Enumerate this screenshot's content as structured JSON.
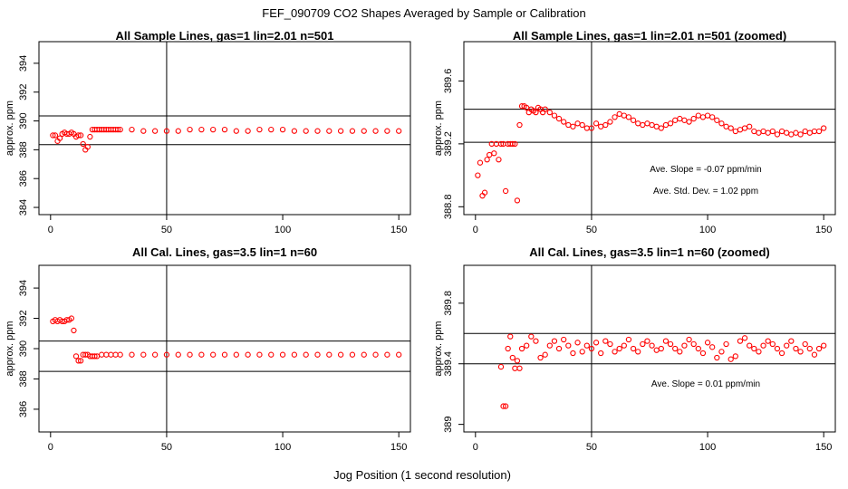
{
  "figure": {
    "title": "FEF_090709  CO2 Shapes Averaged by Sample or Calibration",
    "xlabel": "Jog Position (1 second resolution)",
    "marker_color": "#ff0000",
    "axis_color": "#000000"
  },
  "chart_data": [
    {
      "type": "scatter",
      "title": "All Sample Lines, gas=1 lin=2.01 n=501",
      "xlabel": "",
      "ylabel": "approx. ppm",
      "xlim": [
        -5,
        155
      ],
      "ylim": [
        383.5,
        395.5
      ],
      "xticks": [
        0,
        50,
        100,
        150
      ],
      "yticks": [
        384,
        386,
        388,
        390,
        392,
        394
      ],
      "hlines": [
        388.35,
        390.35
      ],
      "vlines": [
        50
      ],
      "annotations": [],
      "series": [
        {
          "name": "sample",
          "x": [
            1,
            2,
            3,
            4,
            5,
            6,
            7,
            8,
            9,
            10,
            11,
            12,
            13,
            14,
            15,
            16,
            17,
            18,
            19,
            20,
            21,
            22,
            23,
            24,
            25,
            26,
            27,
            28,
            29,
            30,
            35,
            40,
            45,
            50,
            55,
            60,
            65,
            70,
            75,
            80,
            85,
            90,
            95,
            100,
            105,
            110,
            115,
            120,
            125,
            130,
            135,
            140,
            145,
            150
          ],
          "y": [
            389.0,
            389.0,
            388.6,
            388.8,
            389.1,
            389.2,
            389.1,
            389.1,
            389.2,
            389.1,
            388.9,
            389.0,
            389.0,
            388.4,
            388.0,
            388.2,
            388.9,
            389.4,
            389.4,
            389.4,
            389.4,
            389.4,
            389.4,
            389.4,
            389.4,
            389.4,
            389.4,
            389.4,
            389.4,
            389.4,
            389.4,
            389.3,
            389.3,
            389.3,
            389.3,
            389.4,
            389.4,
            389.4,
            389.4,
            389.3,
            389.3,
            389.4,
            389.4,
            389.4,
            389.3,
            389.3,
            389.3,
            389.3,
            389.3,
            389.3,
            389.3,
            389.3,
            389.3,
            389.3
          ]
        }
      ]
    },
    {
      "type": "scatter",
      "title": "All Sample Lines, gas=1 lin=2.01 n=501 (zoomed)",
      "xlabel": "",
      "ylabel": "approx. ppm",
      "xlim": [
        -5,
        155
      ],
      "ylim": [
        388.75,
        389.85
      ],
      "xticks": [
        0,
        50,
        100,
        150
      ],
      "yticks": [
        388.8,
        389.2,
        389.6
      ],
      "hlines": [
        389.42,
        389.21
      ],
      "vlines": [
        50
      ],
      "annotations": [
        "Ave. Slope =  -0.07  ppm/min",
        "Ave. Std. Dev. =  1.02  ppm"
      ],
      "series": [
        {
          "name": "sample-zoomed",
          "x": [
            1,
            2,
            3,
            4,
            5,
            6,
            7,
            8,
            9,
            10,
            11,
            12,
            13,
            14,
            15,
            16,
            17,
            18,
            19,
            20,
            21,
            22,
            23,
            24,
            25,
            26,
            27,
            28,
            29,
            30,
            32,
            34,
            36,
            38,
            40,
            42,
            44,
            46,
            48,
            50,
            52,
            54,
            56,
            58,
            60,
            62,
            64,
            66,
            68,
            70,
            72,
            74,
            76,
            78,
            80,
            82,
            84,
            86,
            88,
            90,
            92,
            94,
            96,
            98,
            100,
            102,
            104,
            106,
            108,
            110,
            112,
            114,
            116,
            118,
            120,
            122,
            124,
            126,
            128,
            130,
            132,
            134,
            136,
            138,
            140,
            142,
            144,
            146,
            148,
            150
          ],
          "y": [
            389.0,
            389.08,
            388.87,
            388.89,
            389.1,
            389.13,
            389.2,
            389.14,
            389.2,
            389.1,
            389.2,
            389.2,
            388.9,
            389.2,
            389.2,
            389.2,
            389.2,
            388.84,
            389.32,
            389.44,
            389.44,
            389.43,
            389.4,
            389.42,
            389.41,
            389.4,
            389.43,
            389.42,
            389.4,
            389.42,
            389.4,
            389.38,
            389.36,
            389.34,
            389.32,
            389.31,
            389.33,
            389.32,
            389.3,
            389.3,
            389.33,
            389.31,
            389.32,
            389.34,
            389.37,
            389.39,
            389.38,
            389.37,
            389.35,
            389.33,
            389.32,
            389.33,
            389.32,
            389.31,
            389.3,
            389.32,
            389.33,
            389.35,
            389.36,
            389.35,
            389.34,
            389.36,
            389.38,
            389.37,
            389.38,
            389.37,
            389.35,
            389.33,
            389.31,
            389.3,
            389.28,
            389.29,
            389.3,
            389.31,
            389.28,
            389.27,
            389.28,
            389.27,
            389.28,
            389.26,
            389.28,
            389.27,
            389.26,
            389.27,
            389.26,
            389.28,
            389.27,
            389.28,
            389.28,
            389.3
          ]
        }
      ]
    },
    {
      "type": "scatter",
      "title": "All Cal. Lines, gas=3.5 lin=1 n=60",
      "xlabel": "",
      "ylabel": "approx. ppm",
      "xlim": [
        -5,
        155
      ],
      "ylim": [
        384.5,
        395.5
      ],
      "xticks": [
        0,
        50,
        100,
        150
      ],
      "yticks": [
        386,
        388,
        390,
        392,
        394
      ],
      "hlines": [
        388.5,
        390.5
      ],
      "vlines": [
        50
      ],
      "annotations": [],
      "series": [
        {
          "name": "calibration",
          "x": [
            1,
            2,
            3,
            4,
            5,
            6,
            7,
            8,
            9,
            10,
            11,
            12,
            13,
            14,
            15,
            16,
            17,
            18,
            19,
            20,
            22,
            24,
            26,
            28,
            30,
            35,
            40,
            45,
            50,
            55,
            60,
            65,
            70,
            75,
            80,
            85,
            90,
            95,
            100,
            105,
            110,
            115,
            120,
            125,
            130,
            135,
            140,
            145,
            150
          ],
          "y": [
            391.8,
            391.9,
            391.8,
            391.9,
            391.8,
            391.8,
            391.9,
            391.9,
            392.0,
            391.2,
            389.5,
            389.2,
            389.2,
            389.6,
            389.6,
            389.6,
            389.5,
            389.5,
            389.5,
            389.5,
            389.6,
            389.6,
            389.6,
            389.6,
            389.6,
            389.6,
            389.6,
            389.6,
            389.6,
            389.6,
            389.6,
            389.6,
            389.6,
            389.6,
            389.6,
            389.6,
            389.6,
            389.6,
            389.6,
            389.6,
            389.6,
            389.6,
            389.6,
            389.6,
            389.6,
            389.6,
            389.6,
            389.6,
            389.6
          ]
        }
      ]
    },
    {
      "type": "scatter",
      "title": "All Cal. Lines, gas=3.5 lin=1 n=60 (zoomed)",
      "xlabel": "",
      "ylabel": "approx. ppm",
      "xlim": [
        -5,
        155
      ],
      "ylim": [
        388.95,
        390.05
      ],
      "xticks": [
        0,
        50,
        100,
        150
      ],
      "yticks": [
        389.0,
        389.4,
        389.8
      ],
      "hlines": [
        389.6,
        389.4
      ],
      "vlines": [
        50
      ],
      "annotations": [
        "Ave. Slope =  0.01  ppm/min"
      ],
      "series": [
        {
          "name": "calibration-zoomed",
          "x": [
            11,
            12,
            13,
            14,
            15,
            16,
            17,
            18,
            19,
            20,
            22,
            24,
            26,
            28,
            30,
            32,
            34,
            36,
            38,
            40,
            42,
            44,
            46,
            48,
            50,
            52,
            54,
            56,
            58,
            60,
            62,
            64,
            66,
            68,
            70,
            72,
            74,
            76,
            78,
            80,
            82,
            84,
            86,
            88,
            90,
            92,
            94,
            96,
            98,
            100,
            102,
            104,
            106,
            108,
            110,
            112,
            114,
            116,
            118,
            120,
            122,
            124,
            126,
            128,
            130,
            132,
            134,
            136,
            138,
            140,
            142,
            144,
            146,
            148,
            150
          ],
          "y": [
            389.38,
            389.12,
            389.12,
            389.5,
            389.58,
            389.44,
            389.37,
            389.42,
            389.37,
            389.5,
            389.52,
            389.58,
            389.55,
            389.44,
            389.46,
            389.52,
            389.55,
            389.5,
            389.56,
            389.52,
            389.47,
            389.54,
            389.48,
            389.52,
            389.5,
            389.54,
            389.47,
            389.55,
            389.53,
            389.48,
            389.5,
            389.52,
            389.56,
            389.5,
            389.48,
            389.53,
            389.55,
            389.52,
            389.49,
            389.5,
            389.55,
            389.53,
            389.5,
            389.48,
            389.52,
            389.56,
            389.53,
            389.5,
            389.47,
            389.54,
            389.51,
            389.44,
            389.48,
            389.53,
            389.43,
            389.45,
            389.55,
            389.57,
            389.52,
            389.5,
            389.48,
            389.52,
            389.55,
            389.53,
            389.5,
            389.47,
            389.52,
            389.55,
            389.5,
            389.48,
            389.53,
            389.5,
            389.46,
            389.5,
            389.52
          ]
        }
      ]
    }
  ]
}
